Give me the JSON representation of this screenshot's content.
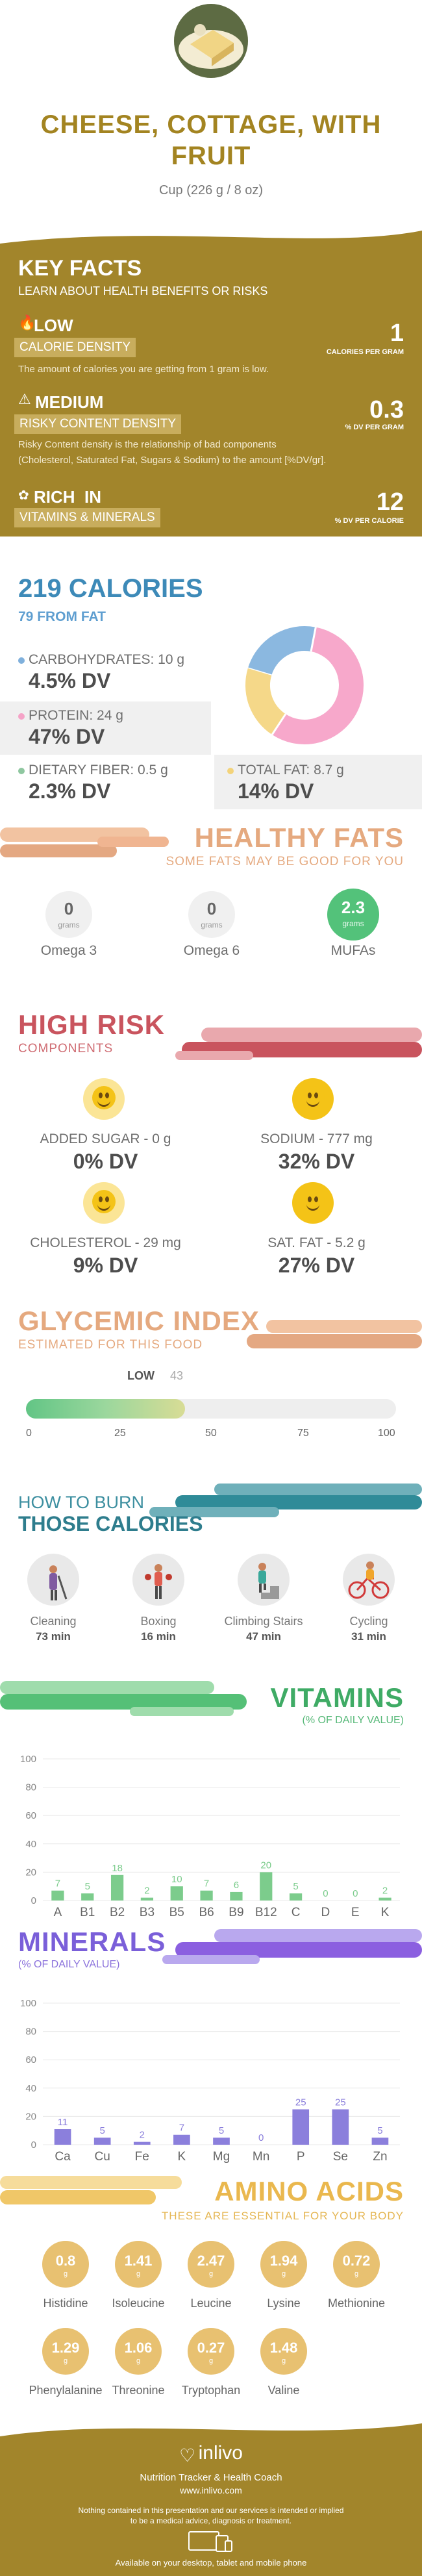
{
  "header": {
    "title_line1": "CHEESE, COTTAGE, WITH",
    "title_line2": "FRUIT",
    "serving": "Cup (226 g / 8 oz)"
  },
  "key_facts": {
    "title": "KEY FACTS",
    "subtitle": "LEARN ABOUT HEALTH BENEFITS OR RISKS",
    "calorie_density": {
      "level": "LOW",
      "label": "CALORIE DENSITY",
      "value": "1",
      "unit": "CALORIES PER GRAM",
      "desc": "The amount of calories you are getting from 1 gram is low."
    },
    "risky": {
      "level": "MEDIUM",
      "label": "RISKY CONTENT DENSITY",
      "value": "0.3",
      "unit": "% DV PER GRAM",
      "desc1": "Risky Content density is the relationship of bad components",
      "desc2": "(Cholesterol, Saturated Fat, Sugars & Sodium) to the amount [%DV/gr]."
    },
    "rich": {
      "level": "RICH  IN",
      "label": "VITAMINS & MINERALS",
      "value": "12",
      "unit": "% DV PER CALORIE"
    }
  },
  "calories": {
    "title": "219 CALORIES",
    "from_fat": "79 FROM FAT",
    "carbs": {
      "label": "CARBOHYDRATES: 10 g",
      "dv": "4.5% DV",
      "color": "#7fb0dc"
    },
    "protein": {
      "label": "PROTEIN: 24 g",
      "dv": "47% DV",
      "color": "#f5a3c7"
    },
    "fiber": {
      "label": "DIETARY FIBER: 0.5 g",
      "dv": "2.3% DV",
      "color": "#8fc7a0"
    },
    "fat": {
      "label": "TOTAL FAT: 8.7 g",
      "dv": "14% DV",
      "color": "#f3d37a"
    }
  },
  "chart_data": [
    {
      "type": "pie",
      "title": "",
      "categories": [
        "Carbohydrates",
        "Protein",
        "Total Fat"
      ],
      "values": [
        10,
        24,
        8.7
      ],
      "colors": [
        "#8bb8e0",
        "#f7a8cb",
        "#f5d889"
      ]
    },
    {
      "type": "bar",
      "title": "VITAMINS",
      "subtitle": "(% OF DAILY VALUE)",
      "categories": [
        "A",
        "B1",
        "B2",
        "B3",
        "B5",
        "B6",
        "B9",
        "B12",
        "C",
        "D",
        "E",
        "K"
      ],
      "values": [
        7,
        5,
        18,
        2,
        10,
        7,
        6,
        20,
        5,
        0,
        0,
        2
      ],
      "ylim": [
        0,
        100
      ],
      "yticks": [
        0,
        20,
        40,
        60,
        80,
        100
      ],
      "color": "#7ccc8c"
    },
    {
      "type": "bar",
      "title": "MINERALS",
      "subtitle": "(% OF DAILY VALUE)",
      "categories": [
        "Ca",
        "Cu",
        "Fe",
        "K",
        "Mg",
        "Mn",
        "P",
        "Se",
        "Zn"
      ],
      "values": [
        11,
        5,
        2,
        7,
        5,
        0,
        25,
        25,
        5
      ],
      "ylim": [
        0,
        100
      ],
      "yticks": [
        0,
        20,
        40,
        60,
        80,
        100
      ],
      "color": "#8b7fdc"
    }
  ],
  "healthy_fats": {
    "title": "HEALTHY FATS",
    "subtitle": "SOME FATS MAY BE GOOD FOR YOU",
    "items": [
      {
        "value": "0",
        "unit": "grams",
        "name": "Omega 3"
      },
      {
        "value": "0",
        "unit": "grams",
        "name": "Omega 6"
      },
      {
        "value": "2.3",
        "unit": "grams",
        "name": "MUFAs"
      }
    ]
  },
  "high_risk": {
    "title": "HIGH RISK",
    "subtitle": "COMPONENTS",
    "items": [
      {
        "label": "ADDED SUGAR - 0 g",
        "dv": "0% DV"
      },
      {
        "label": "SODIUM - 777 mg",
        "dv": "32% DV"
      },
      {
        "label": "CHOLESTEROL - 29 mg",
        "dv": "9% DV"
      },
      {
        "label": "SAT. FAT - 5.2 g",
        "dv": "27% DV"
      }
    ]
  },
  "glycemic": {
    "title": "GLYCEMIC INDEX",
    "subtitle": "ESTIMATED FOR THIS FOOD",
    "level": "LOW",
    "value": 43,
    "ticks": [
      "0",
      "25",
      "50",
      "75",
      "100"
    ]
  },
  "burn": {
    "title1": "HOW TO BURN",
    "title2": "THOSE CALORIES",
    "items": [
      {
        "name": "Cleaning",
        "time": "73 min"
      },
      {
        "name": "Boxing",
        "time": "16 min"
      },
      {
        "name": "Climbing Stairs",
        "time": "47 min"
      },
      {
        "name": "Cycling",
        "time": "31 min"
      }
    ]
  },
  "amino": {
    "title": "AMINO ACIDS",
    "subtitle": "THESE ARE ESSENTIAL FOR YOUR BODY",
    "items": [
      {
        "v": "0.8",
        "name": "Histidine"
      },
      {
        "v": "1.41",
        "name": "Isoleucine"
      },
      {
        "v": "2.47",
        "name": "Leucine"
      },
      {
        "v": "1.94",
        "name": "Lysine"
      },
      {
        "v": "0.72",
        "name": "Methionine"
      },
      {
        "v": "1.29",
        "name": "Phenylalanine"
      },
      {
        "v": "1.06",
        "name": "Threonine"
      },
      {
        "v": "0.27",
        "name": "Tryptophan"
      },
      {
        "v": "1.48",
        "name": "Valine"
      }
    ],
    "unit": "g"
  },
  "footer": {
    "brand": "inlivo",
    "tagline": "Nutrition Tracker & Health Coach",
    "url": "www.inlivo.com",
    "disclaimer1": "Nothing contained in this presentation and our services is intended or implied",
    "disclaimer2": "to be a medical advice, diagnosis or treatment.",
    "available": "Available on your desktop, tablet and mobile phone"
  }
}
